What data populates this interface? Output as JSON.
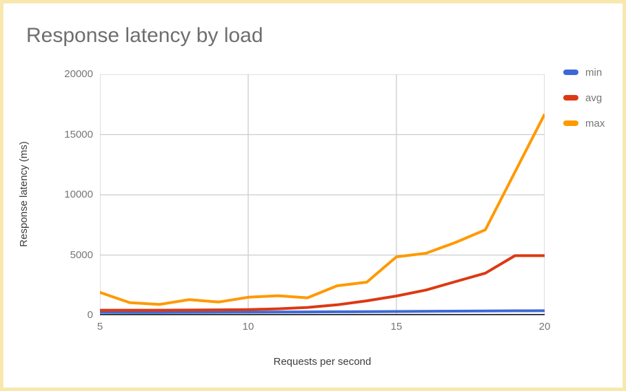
{
  "page": {
    "title": "Response latency by load"
  },
  "chart_data": {
    "type": "line",
    "title": "Response latency by load",
    "xlabel": "Requests per second",
    "ylabel": "Response latency (ms)",
    "x": [
      5,
      6,
      7,
      8,
      9,
      10,
      11,
      12,
      13,
      14,
      15,
      16,
      17,
      18,
      19,
      20
    ],
    "series": [
      {
        "name": "min",
        "color": "#3C69D7",
        "values": [
          250,
          245,
          245,
          250,
          255,
          260,
          270,
          280,
          290,
          300,
          315,
          330,
          345,
          360,
          370,
          380
        ]
      },
      {
        "name": "avg",
        "color": "#DC3912",
        "values": [
          420,
          420,
          425,
          435,
          450,
          470,
          540,
          650,
          870,
          1200,
          1600,
          2100,
          2800,
          3500,
          4950,
          4950
        ]
      },
      {
        "name": "max",
        "color": "#FF9900",
        "values": [
          1900,
          1050,
          900,
          1300,
          1100,
          1500,
          1620,
          1450,
          2450,
          2750,
          4850,
          5150,
          6050,
          7100,
          11900,
          16700
        ]
      }
    ],
    "xlim": [
      5,
      20
    ],
    "ylim": [
      0,
      20000
    ],
    "x_ticks": [
      5,
      10,
      15,
      20
    ],
    "y_ticks": [
      0,
      5000,
      10000,
      15000,
      20000
    ],
    "grid": true,
    "legend_position": "right"
  },
  "styles": {
    "frame_border": "#F7E8AE",
    "gridline_color": "#CCCCCC",
    "axis_line_color": "#3B3B3B",
    "title_color": "#6E6E6E",
    "tick_label_color": "#757575",
    "axis_title_color": "#3C3C3C"
  }
}
